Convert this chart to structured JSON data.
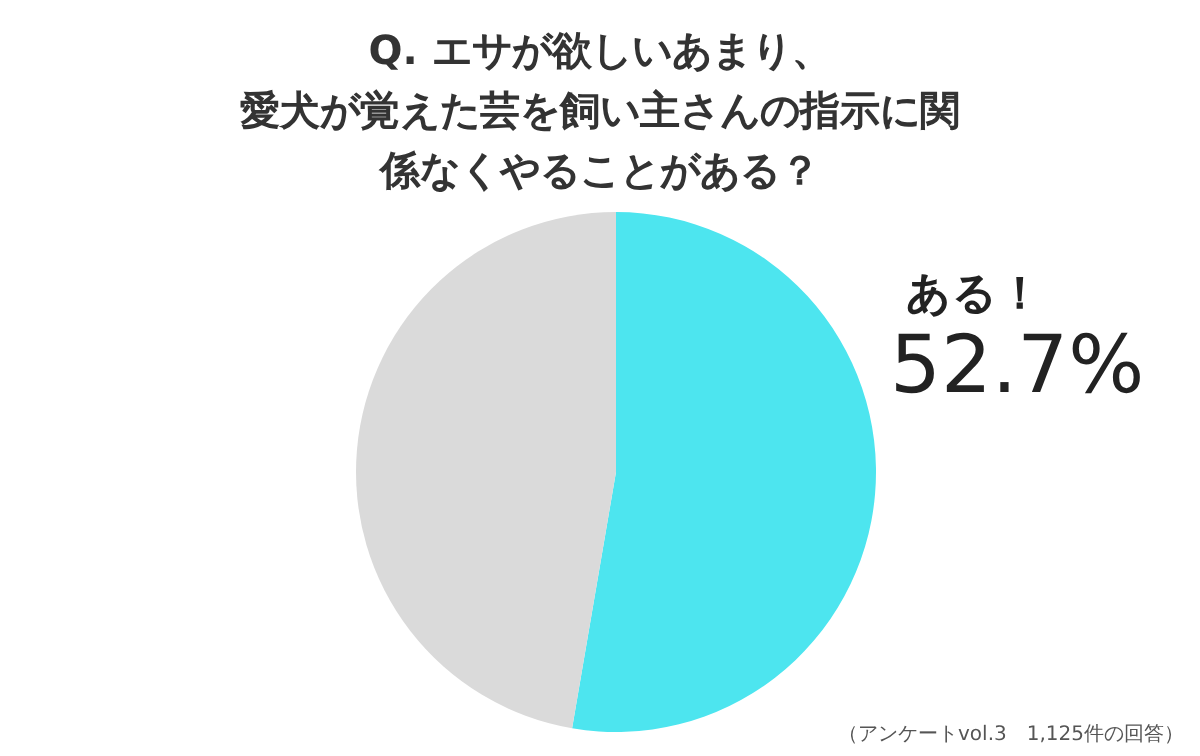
{
  "chart_data": {
    "type": "pie",
    "title": "Q.  エサが欲しいあまり、愛犬が覚えた芸を飼い主さんの指示に関係なくやることがある？",
    "categories": [
      "ある！",
      null
    ],
    "values": [
      52.7,
      47.3
    ],
    "colors": [
      "#4de5ef",
      "#dadada"
    ],
    "value_labels": [
      "52.7%",
      null
    ],
    "annotations": [
      "（アンケートvol.3　1,125件の回答）"
    ]
  }
}
